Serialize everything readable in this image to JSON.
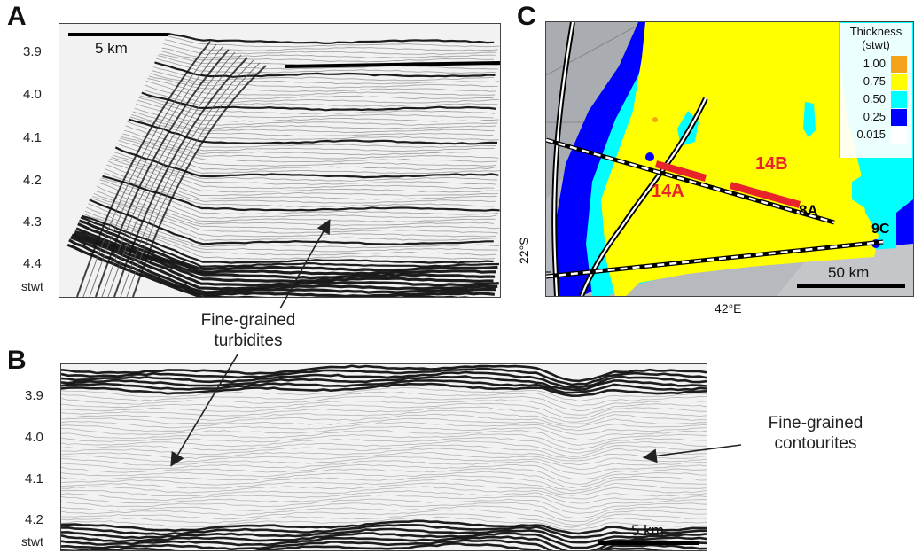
{
  "panel_a": {
    "letter": "A",
    "scale_bar": "5 km",
    "y_ticks": [
      "3.9",
      "4.0",
      "4.1",
      "4.2",
      "4.3",
      "4.4"
    ],
    "y_unit": "stwt"
  },
  "panel_b": {
    "letter": "B",
    "scale_bar": "5 km",
    "y_ticks": [
      "3.9",
      "4.0",
      "4.1",
      "4.2"
    ],
    "y_unit": "stwt"
  },
  "panel_c": {
    "letter": "C",
    "legend_title_1": "Thickness",
    "legend_title_2": "(stwt)",
    "legend": [
      {
        "label": "1.00",
        "color": "#f5a31a"
      },
      {
        "label": "0.75",
        "color": "#ffff00"
      },
      {
        "label": "0.50",
        "color": "#00ffff"
      },
      {
        "label": "0.25",
        "color": "#0000ff"
      },
      {
        "label": "0.015",
        "color": "#ffffff"
      }
    ],
    "profile_labels": {
      "a14": "14A",
      "b14": "14B",
      "a8": "8A",
      "c9": "9C"
    },
    "scale_bar": "50 km",
    "lat_label": "22°S",
    "lon_label": "42°E"
  },
  "callouts": {
    "turbidites_line1": "Fine-grained",
    "turbidites_line2": "turbidites",
    "contourites_line1": "Fine-grained",
    "contourites_line2": "contourites"
  },
  "colors": {
    "highlight": "#e8232a",
    "thickness_yellow": "#ffff00",
    "thickness_cyan": "#00ffff",
    "thickness_blue": "#0000ff"
  }
}
